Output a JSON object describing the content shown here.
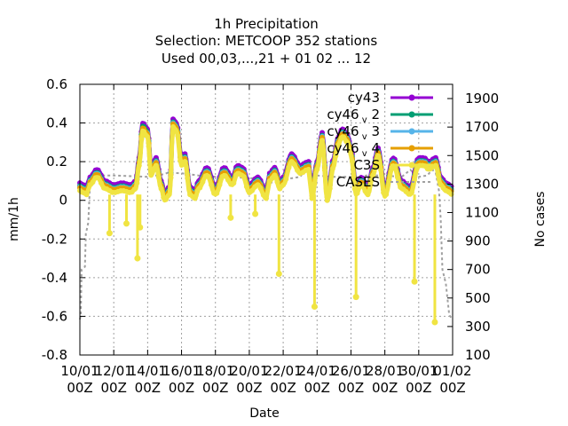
{
  "chart_data": {
    "type": "line",
    "title_lines": [
      "1h Precipitation",
      "Selection: METCOOP    352 stations",
      "Used  00,03,...,21  + 01  02  ...  12"
    ],
    "xlabel": "Date",
    "ylabel": "mm/1h",
    "y2label": "No cases",
    "xlim": [
      0,
      22
    ],
    "ylim": [
      -0.8,
      0.6
    ],
    "y2lim": [
      100,
      2000
    ],
    "x_ticks": [
      {
        "pos": 0,
        "line1": "10/01",
        "line2": "00Z"
      },
      {
        "pos": 2,
        "line1": "12/01",
        "line2": "00Z"
      },
      {
        "pos": 4,
        "line1": "14/01",
        "line2": "00Z"
      },
      {
        "pos": 6,
        "line1": "16/01",
        "line2": "00Z"
      },
      {
        "pos": 8,
        "line1": "18/01",
        "line2": "00Z"
      },
      {
        "pos": 10,
        "line1": "20/01",
        "line2": "00Z"
      },
      {
        "pos": 12,
        "line1": "22/01",
        "line2": "00Z"
      },
      {
        "pos": 14,
        "line1": "24/01",
        "line2": "00Z"
      },
      {
        "pos": 16,
        "line1": "26/01",
        "line2": "00Z"
      },
      {
        "pos": 18,
        "line1": "28/01",
        "line2": "00Z"
      },
      {
        "pos": 20,
        "line1": "30/01",
        "line2": "00Z"
      },
      {
        "pos": 22,
        "line1": "01/02",
        "line2": "00Z"
      }
    ],
    "y_ticks": [
      -0.8,
      -0.6,
      -0.4,
      -0.2,
      0,
      0.2,
      0.4,
      0.6
    ],
    "y_tick_labels": [
      "-0.8",
      "-0.6",
      "-0.4",
      "-0.2",
      "0",
      "0.2",
      "0.4",
      "0.6"
    ],
    "y2_ticks": [
      100,
      300,
      500,
      700,
      900,
      1100,
      1300,
      1500,
      1700,
      1900
    ],
    "grid": true,
    "legend_position": "top-right",
    "legend": [
      {
        "label_main": "cy43",
        "label_sub": "",
        "label_tail": "",
        "color": "#9400d3"
      },
      {
        "label_main": "cy46",
        "label_sub": "v",
        "label_tail": "2",
        "color": "#009e73"
      },
      {
        "label_main": "cy46",
        "label_sub": "v",
        "label_tail": "3",
        "color": "#56b4e9"
      },
      {
        "label_main": "cy46",
        "label_sub": "v",
        "label_tail": "4",
        "color": "#e69f00"
      },
      {
        "label_main": "C3S",
        "label_sub": "",
        "label_tail": "",
        "color": "#f0e442"
      },
      {
        "label_main": "CASES",
        "label_sub": "",
        "label_tail": "",
        "color": "#a0a0a0"
      }
    ],
    "series": [
      {
        "name": "cy43",
        "color": "#9400d3",
        "offset": 0.02,
        "x": [
          0,
          0.2,
          0.4,
          0.6,
          1.0,
          1.5,
          2.0,
          2.5,
          3.0,
          3.3,
          3.5,
          3.7,
          4.0,
          4.2,
          4.5,
          4.8,
          5.0,
          5.3,
          5.5,
          5.7,
          6.0,
          6.2,
          6.5,
          6.8,
          7.0,
          7.5,
          8.0,
          8.5,
          9.0,
          9.3,
          9.6,
          10.0,
          10.5,
          11.0,
          11.2,
          11.5,
          11.8,
          12.0,
          12.5,
          13.0,
          13.5,
          13.7,
          14.0,
          14.3,
          14.6,
          15.0,
          15.2,
          15.5,
          15.8,
          16.0,
          16.3,
          16.6,
          17.0,
          17.3,
          17.6,
          18.0,
          18.5,
          19.0,
          19.5,
          20.0,
          20.3,
          20.6,
          21.0,
          21.3,
          21.6,
          22.0
        ],
        "y": [
          0.07,
          0.06,
          0.05,
          0.1,
          0.14,
          0.08,
          0.06,
          0.07,
          0.06,
          0.08,
          0.2,
          0.38,
          0.35,
          0.15,
          0.2,
          0.08,
          0.02,
          0.05,
          0.4,
          0.38,
          0.2,
          0.22,
          0.05,
          0.03,
          0.08,
          0.15,
          0.05,
          0.15,
          0.1,
          0.16,
          0.15,
          0.06,
          0.1,
          0.03,
          0.12,
          0.15,
          0.08,
          0.1,
          0.22,
          0.16,
          0.18,
          0.03,
          0.18,
          0.33,
          0.02,
          0.2,
          0.3,
          0.35,
          0.32,
          0.25,
          0.05,
          0.1,
          0.05,
          0.15,
          0.25,
          0.04,
          0.2,
          0.08,
          0.05,
          0.2,
          0.2,
          0.18,
          0.2,
          0.1,
          0.07,
          0.05
        ]
      },
      {
        "name": "cy46 v 2",
        "color": "#009e73",
        "offset": 0.005,
        "x": [
          0,
          0.2,
          0.4,
          0.6,
          1.0,
          1.5,
          2.0,
          2.5,
          3.0,
          3.3,
          3.5,
          3.7,
          4.0,
          4.2,
          4.5,
          4.8,
          5.0,
          5.3,
          5.5,
          5.7,
          6.0,
          6.2,
          6.5,
          6.8,
          7.0,
          7.5,
          8.0,
          8.5,
          9.0,
          9.3,
          9.6,
          10.0,
          10.5,
          11.0,
          11.2,
          11.5,
          11.8,
          12.0,
          12.5,
          13.0,
          13.5,
          13.7,
          14.0,
          14.3,
          14.6,
          15.0,
          15.2,
          15.5,
          15.8,
          16.0,
          16.3,
          16.6,
          17.0,
          17.3,
          17.6,
          18.0,
          18.5,
          19.0,
          19.5,
          20.0,
          20.3,
          20.6,
          21.0,
          21.3,
          21.6,
          22.0
        ],
        "y": [
          0.07,
          0.06,
          0.05,
          0.1,
          0.14,
          0.08,
          0.06,
          0.07,
          0.06,
          0.08,
          0.2,
          0.38,
          0.35,
          0.15,
          0.2,
          0.08,
          0.02,
          0.05,
          0.4,
          0.38,
          0.2,
          0.22,
          0.05,
          0.03,
          0.08,
          0.15,
          0.05,
          0.15,
          0.1,
          0.16,
          0.15,
          0.06,
          0.1,
          0.03,
          0.12,
          0.15,
          0.08,
          0.1,
          0.22,
          0.16,
          0.18,
          0.03,
          0.18,
          0.33,
          0.02,
          0.2,
          0.3,
          0.35,
          0.32,
          0.25,
          0.05,
          0.1,
          0.05,
          0.15,
          0.25,
          0.04,
          0.2,
          0.08,
          0.05,
          0.2,
          0.2,
          0.18,
          0.2,
          0.1,
          0.07,
          0.05
        ]
      },
      {
        "name": "cy46 v 3",
        "color": "#56b4e9",
        "offset": 0.0,
        "x": [
          0,
          0.2,
          0.4,
          0.6,
          1.0,
          1.5,
          2.0,
          2.5,
          3.0,
          3.3,
          3.5,
          3.7,
          4.0,
          4.2,
          4.5,
          4.8,
          5.0,
          5.3,
          5.5,
          5.7,
          6.0,
          6.2,
          6.5,
          6.8,
          7.0,
          7.5,
          8.0,
          8.5,
          9.0,
          9.3,
          9.6,
          10.0,
          10.5,
          11.0,
          11.2,
          11.5,
          11.8,
          12.0,
          12.5,
          13.0,
          13.5,
          13.7,
          14.0,
          14.3,
          14.6,
          15.0,
          15.2,
          15.5,
          15.8,
          16.0,
          16.3,
          16.6,
          17.0,
          17.3,
          17.6,
          18.0,
          18.5,
          19.0,
          19.5,
          20.0,
          20.3,
          20.6,
          21.0,
          21.3,
          21.6,
          22.0
        ],
        "y": [
          0.07,
          0.06,
          0.05,
          0.1,
          0.14,
          0.08,
          0.06,
          0.07,
          0.06,
          0.08,
          0.2,
          0.36,
          0.35,
          0.15,
          0.2,
          0.08,
          0.02,
          0.05,
          0.4,
          0.38,
          0.2,
          0.22,
          0.05,
          0.03,
          0.08,
          0.15,
          0.05,
          0.15,
          0.1,
          0.16,
          0.15,
          0.06,
          0.1,
          0.03,
          0.12,
          0.15,
          0.08,
          0.1,
          0.22,
          0.16,
          0.18,
          0.03,
          0.18,
          0.33,
          0.02,
          0.2,
          0.3,
          0.35,
          0.32,
          0.25,
          0.05,
          0.1,
          0.05,
          0.15,
          0.25,
          0.04,
          0.2,
          0.08,
          0.05,
          0.2,
          0.2,
          0.18,
          0.2,
          0.1,
          0.07,
          0.05
        ]
      },
      {
        "name": "cy46 v 4",
        "color": "#e69f00",
        "offset": -0.005,
        "x": [
          0,
          0.2,
          0.4,
          0.6,
          1.0,
          1.5,
          2.0,
          2.5,
          3.0,
          3.3,
          3.5,
          3.7,
          4.0,
          4.2,
          4.5,
          4.8,
          5.0,
          5.3,
          5.5,
          5.7,
          6.0,
          6.2,
          6.5,
          6.8,
          7.0,
          7.5,
          8.0,
          8.5,
          9.0,
          9.3,
          9.6,
          10.0,
          10.5,
          11.0,
          11.2,
          11.5,
          11.8,
          12.0,
          12.5,
          13.0,
          13.5,
          13.7,
          14.0,
          14.3,
          14.6,
          15.0,
          15.2,
          15.5,
          15.8,
          16.0,
          16.3,
          16.6,
          17.0,
          17.3,
          17.6,
          18.0,
          18.5,
          19.0,
          19.5,
          20.0,
          20.3,
          20.6,
          21.0,
          21.3,
          21.6,
          22.0
        ],
        "y": [
          0.07,
          0.06,
          0.05,
          0.1,
          0.14,
          0.08,
          0.06,
          0.07,
          0.06,
          0.08,
          0.2,
          0.38,
          0.35,
          0.15,
          0.2,
          0.08,
          0.02,
          0.05,
          0.4,
          0.38,
          0.2,
          0.22,
          0.05,
          0.03,
          0.08,
          0.15,
          0.05,
          0.15,
          0.1,
          0.16,
          0.15,
          0.06,
          0.1,
          0.03,
          0.12,
          0.15,
          0.08,
          0.1,
          0.22,
          0.16,
          0.18,
          0.03,
          0.18,
          0.33,
          0.02,
          0.2,
          0.3,
          0.35,
          0.32,
          0.25,
          0.05,
          0.1,
          0.05,
          0.15,
          0.25,
          0.04,
          0.2,
          0.08,
          0.05,
          0.2,
          0.2,
          0.18,
          0.2,
          0.1,
          0.07,
          0.05
        ]
      },
      {
        "name": "C3S",
        "color": "#f0e442",
        "offset": -0.02,
        "x": [
          0,
          0.2,
          0.4,
          0.6,
          1.0,
          1.5,
          2.0,
          2.5,
          3.0,
          3.3,
          3.5,
          3.7,
          4.0,
          4.2,
          4.5,
          4.8,
          5.0,
          5.3,
          5.5,
          5.7,
          6.0,
          6.2,
          6.5,
          6.8,
          7.0,
          7.5,
          8.0,
          8.5,
          9.0,
          9.3,
          9.6,
          10.0,
          10.5,
          11.0,
          11.2,
          11.5,
          11.8,
          12.0,
          12.5,
          13.0,
          13.5,
          13.7,
          14.0,
          14.3,
          14.6,
          15.0,
          15.2,
          15.5,
          15.8,
          16.0,
          16.3,
          16.6,
          17.0,
          17.3,
          17.6,
          18.0,
          18.5,
          19.0,
          19.5,
          20.0,
          20.3,
          20.6,
          21.0,
          21.3,
          21.6,
          22.0
        ],
        "y": [
          0.07,
          0.06,
          0.05,
          0.1,
          0.14,
          0.08,
          0.06,
          0.07,
          0.06,
          0.08,
          0.2,
          0.38,
          0.35,
          0.15,
          0.2,
          0.08,
          0.02,
          0.05,
          0.4,
          0.38,
          0.2,
          0.22,
          0.05,
          0.03,
          0.08,
          0.15,
          0.05,
          0.15,
          0.1,
          0.16,
          0.15,
          0.06,
          0.1,
          0.03,
          0.12,
          0.15,
          0.08,
          0.1,
          0.22,
          0.16,
          0.18,
          0.03,
          0.18,
          0.33,
          0.02,
          0.2,
          0.3,
          0.35,
          0.32,
          0.25,
          0.05,
          0.1,
          0.05,
          0.15,
          0.25,
          0.04,
          0.2,
          0.08,
          0.05,
          0.2,
          0.2,
          0.18,
          0.2,
          0.1,
          0.07,
          0.05
        ]
      }
    ],
    "c3s_spikes": [
      {
        "x": 1.75,
        "y": -0.17
      },
      {
        "x": 2.75,
        "y": -0.12
      },
      {
        "x": 3.4,
        "y": -0.3
      },
      {
        "x": 3.55,
        "y": -0.14
      },
      {
        "x": 8.9,
        "y": -0.09
      },
      {
        "x": 10.35,
        "y": -0.07
      },
      {
        "x": 11.75,
        "y": -0.38
      },
      {
        "x": 13.85,
        "y": -0.55
      },
      {
        "x": 16.3,
        "y": -0.5
      },
      {
        "x": 19.75,
        "y": -0.42
      },
      {
        "x": 20.95,
        "y": -0.63
      }
    ],
    "cases": {
      "name": "CASES",
      "color": "#a0a0a0",
      "x": [
        0,
        0.05,
        0.1,
        0.3,
        0.35,
        0.5,
        0.6,
        1.0,
        2.0,
        3.0,
        4.0,
        5.0,
        5.2,
        6.0,
        7.0,
        8.0,
        9.0,
        10.0,
        10.5,
        11.0,
        11.3,
        11.5,
        12.0,
        12.5,
        13.0,
        13.3,
        13.5,
        14.0,
        15.0,
        16.0,
        17.0,
        18.0,
        19.0,
        19.5,
        20.0,
        20.5,
        20.8,
        21.0,
        21.2,
        21.3,
        21.4,
        21.6,
        21.8,
        22.0
      ],
      "y": [
        350,
        380,
        700,
        720,
        950,
        1030,
        1320,
        1360,
        1360,
        1355,
        1350,
        1370,
        1380,
        1375,
        1360,
        1350,
        1350,
        1340,
        1340,
        1300,
        1310,
        1320,
        1340,
        1340,
        1350,
        1400,
        1380,
        1360,
        1350,
        1350,
        1360,
        1360,
        1350,
        1400,
        1350,
        1360,
        1400,
        1380,
        1250,
        1050,
        700,
        600,
        380,
        350
      ]
    }
  }
}
